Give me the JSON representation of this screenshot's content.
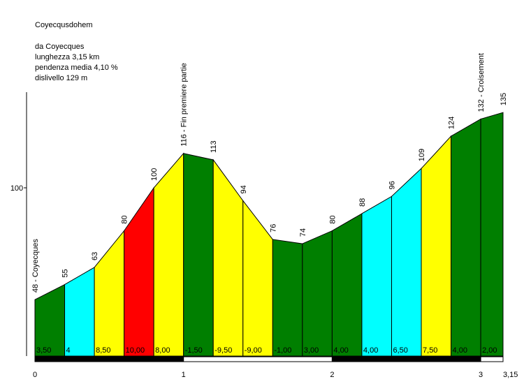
{
  "info": {
    "title": "Coyecqusdohem",
    "from": "da Coyecques",
    "length": "lunghezza 3,15 km",
    "avg_gradient": "pendenza media 4,10 %",
    "elevation_gain": "dislivello 129 m"
  },
  "colors": {
    "green": "#007f00",
    "cyan": "#00ffff",
    "yellow": "#ffff00",
    "red": "#ff0000"
  },
  "chart_data": {
    "type": "area",
    "title": "Coyecqusdohem",
    "xlabel": "",
    "ylabel": "",
    "xlim": [
      0,
      3.15
    ],
    "ylim": [
      20,
      157
    ],
    "yticks": [
      {
        "value": 100,
        "label": "100"
      }
    ],
    "xticks": [
      {
        "value": 0,
        "label": "0"
      },
      {
        "value": 1,
        "label": "1"
      },
      {
        "value": 2,
        "label": "2"
      },
      {
        "value": 3,
        "label": "3"
      },
      {
        "value": 3.15,
        "label": "3,15"
      }
    ],
    "points": [
      {
        "km": 0,
        "elev": 48,
        "label": "48 - Coyecques"
      },
      {
        "km": 0.2,
        "elev": 55,
        "label": "55"
      },
      {
        "km": 0.4,
        "elev": 63,
        "label": "63"
      },
      {
        "km": 0.6,
        "elev": 80,
        "label": "80"
      },
      {
        "km": 0.8,
        "elev": 100,
        "label": "100"
      },
      {
        "km": 1.0,
        "elev": 116,
        "label": "116 - Fin premiere partie"
      },
      {
        "km": 1.2,
        "elev": 113,
        "label": "113"
      },
      {
        "km": 1.4,
        "elev": 94,
        "label": "94"
      },
      {
        "km": 1.6,
        "elev": 76,
        "label": "76"
      },
      {
        "km": 1.8,
        "elev": 74,
        "label": "74"
      },
      {
        "km": 2.0,
        "elev": 80,
        "label": "80"
      },
      {
        "km": 2.2,
        "elev": 88,
        "label": "88"
      },
      {
        "km": 2.4,
        "elev": 96,
        "label": "96"
      },
      {
        "km": 2.6,
        "elev": 109,
        "label": "109"
      },
      {
        "km": 2.8,
        "elev": 124,
        "label": "124"
      },
      {
        "km": 3.0,
        "elev": 132,
        "label": "132 - Croisement"
      },
      {
        "km": 3.15,
        "elev": 135,
        "label": "135"
      }
    ],
    "segments": [
      {
        "gradient": "3,50",
        "color": "green"
      },
      {
        "gradient": "4",
        "color": "cyan"
      },
      {
        "gradient": "8,50",
        "color": "yellow"
      },
      {
        "gradient": "10,00",
        "color": "red"
      },
      {
        "gradient": "8,00",
        "color": "yellow"
      },
      {
        "gradient": "-1,50",
        "color": "green"
      },
      {
        "gradient": "-9,50",
        "color": "yellow"
      },
      {
        "gradient": "-9,00",
        "color": "yellow"
      },
      {
        "gradient": "-1,00",
        "color": "green"
      },
      {
        "gradient": "3,00",
        "color": "green"
      },
      {
        "gradient": "4,00",
        "color": "green"
      },
      {
        "gradient": "4,00",
        "color": "cyan"
      },
      {
        "gradient": "6,50",
        "color": "cyan"
      },
      {
        "gradient": "7,50",
        "color": "yellow"
      },
      {
        "gradient": "4,00",
        "color": "green"
      },
      {
        "gradient": "2,00",
        "color": "green"
      }
    ],
    "km_bar": [
      "black",
      "white",
      "black",
      "white"
    ]
  }
}
